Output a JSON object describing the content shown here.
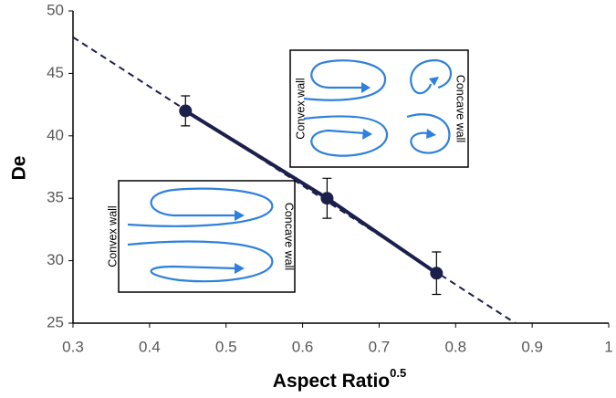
{
  "chart_data": {
    "type": "scatter",
    "x_label": "Aspect Ratio",
    "x_label_superscript": "0.5",
    "y_label": "De",
    "color": "#1b1f4b",
    "x": [
      0.447,
      0.632,
      0.775
    ],
    "values": [
      42,
      35,
      29
    ],
    "errors": [
      1.2,
      1.6,
      1.7
    ],
    "trendline": {
      "x": [
        0.3,
        0.878
      ],
      "y": [
        47.9,
        25
      ]
    },
    "xlim": [
      0.3,
      1
    ],
    "xticks": [
      0.3,
      0.4,
      0.5,
      0.6,
      0.7,
      0.8,
      0.9,
      1
    ],
    "ylim": [
      25,
      50
    ],
    "yticks": [
      25,
      30,
      35,
      40,
      45,
      50
    ],
    "annotations": [
      {
        "left_label": "Convex wall",
        "right_label": "Concave wall"
      },
      {
        "left_label": "Convex wall",
        "right_label": "Concave wall"
      }
    ]
  }
}
